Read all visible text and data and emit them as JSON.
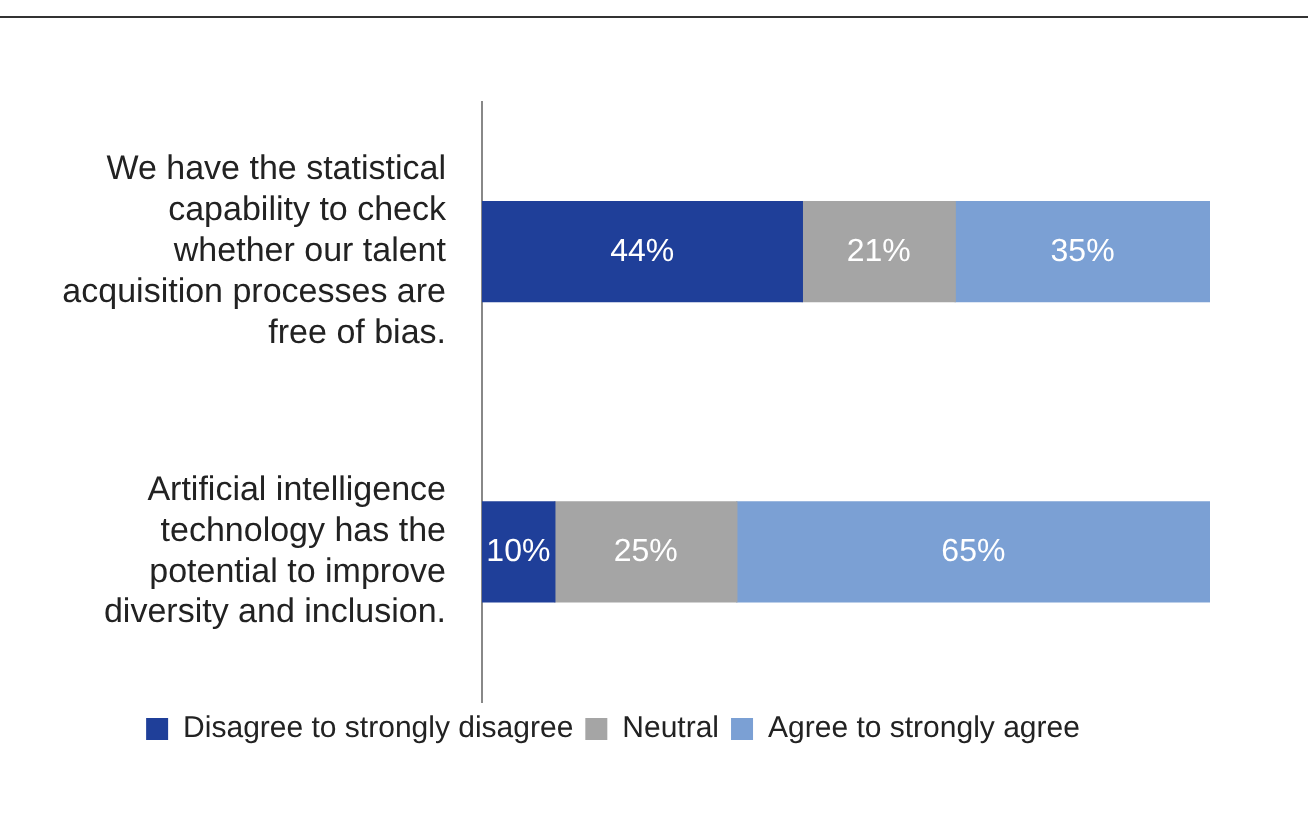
{
  "chart_data": {
    "type": "bar",
    "orientation": "horizontal",
    "stacked": true,
    "categories": [
      "We have the statistical capability to check whether our talent acquisition processes are free of bias.",
      "Artificial intelligence technology has the potential to improve diversity and inclusion."
    ],
    "series": [
      {
        "name": "Disagree to strongly disagree",
        "color": "#1f3f99",
        "values": [
          44,
          10
        ],
        "value_labels": [
          "44%",
          "10%"
        ]
      },
      {
        "name": "Neutral",
        "color": "#a5a5a5",
        "values": [
          21,
          25
        ],
        "value_labels": [
          "21%",
          "25%"
        ]
      },
      {
        "name": "Agree to strongly agree",
        "color": "#7ba0d4",
        "values": [
          35,
          65
        ],
        "value_labels": [
          "35%",
          "65%"
        ]
      }
    ],
    "xlim": [
      0,
      100
    ],
    "tick_labels": "y",
    "legend": "bottom"
  }
}
